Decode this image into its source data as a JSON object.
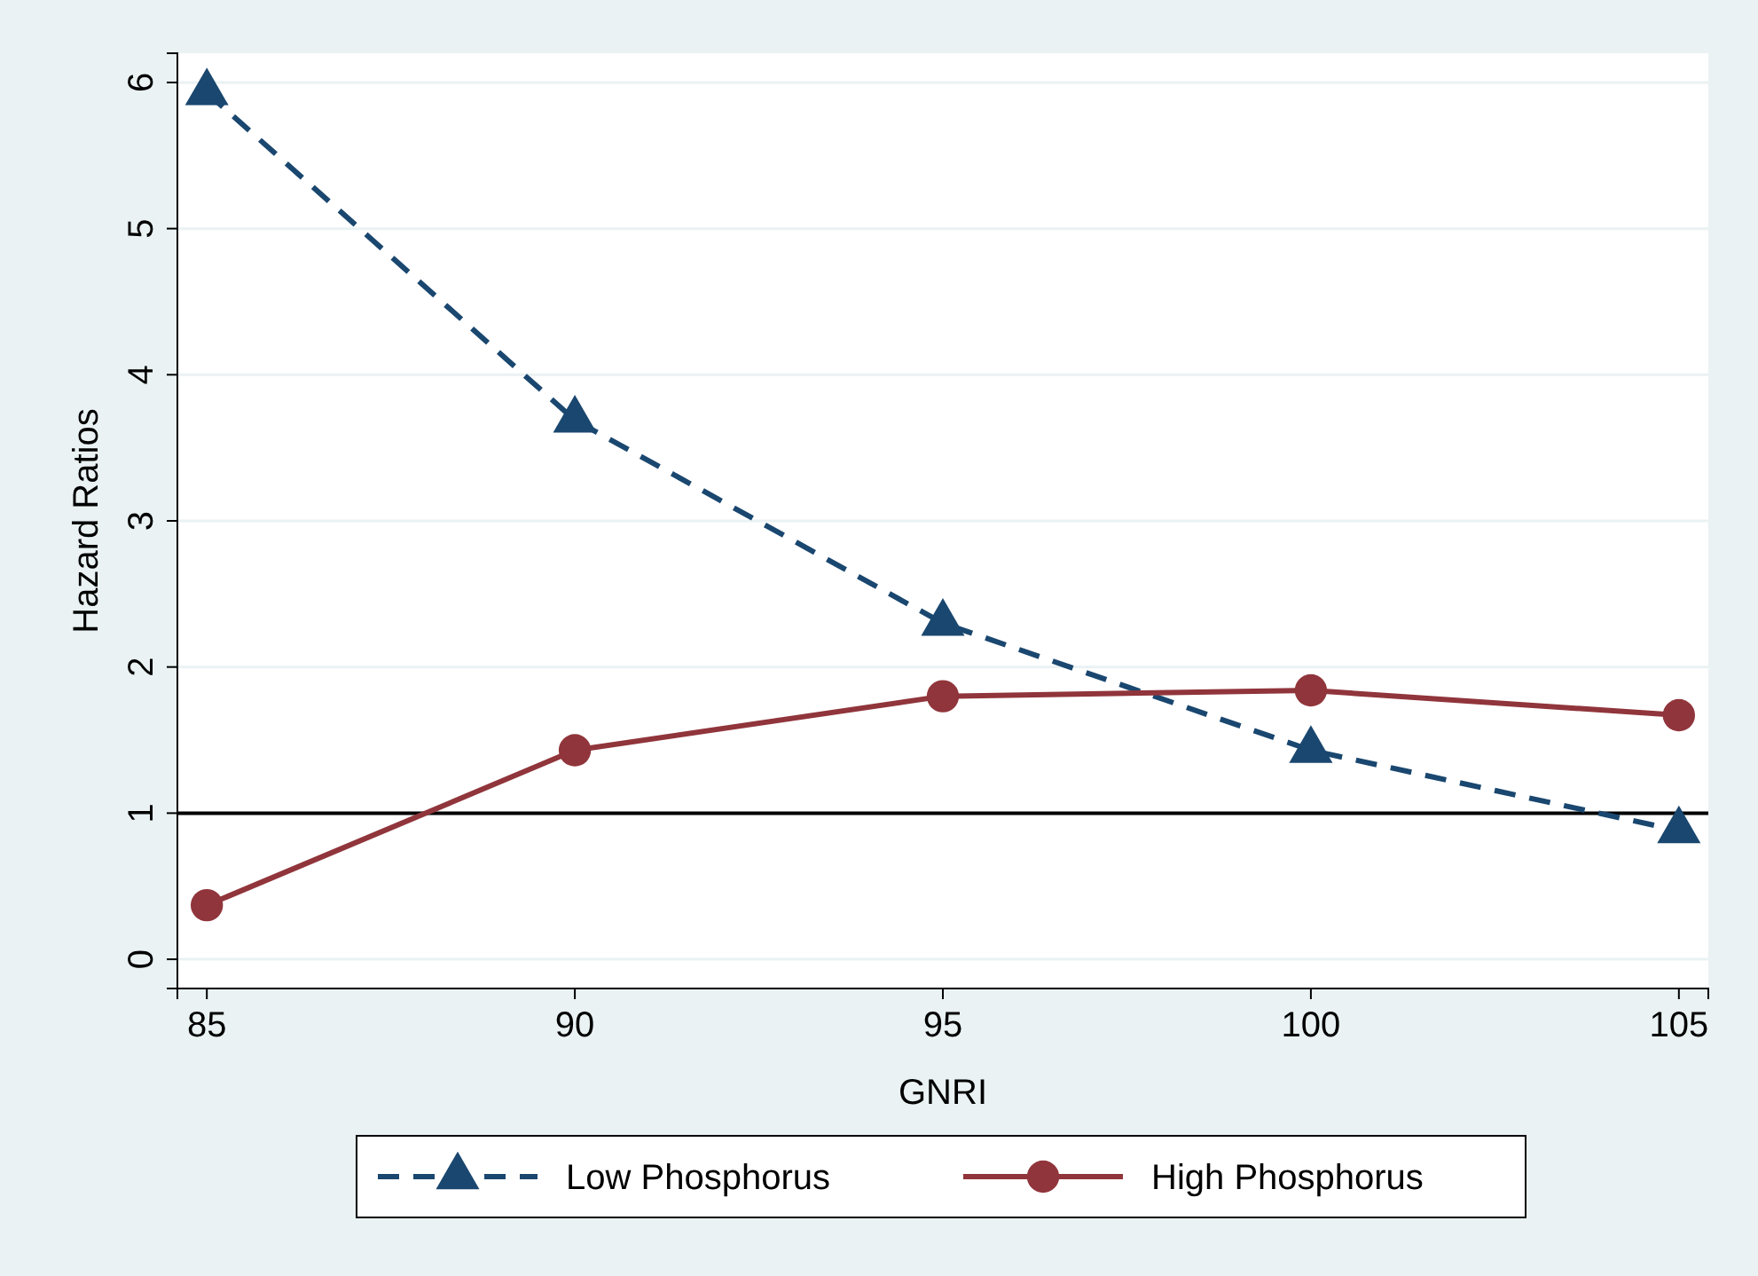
{
  "chart_data": {
    "type": "line",
    "xlabel": "GNRI",
    "ylabel": "Hazard Ratios",
    "x": [
      85,
      90,
      95,
      100,
      105
    ],
    "series": [
      {
        "name": "Low Phosphorus",
        "color": "#1a476f",
        "values": [
          5.93,
          3.69,
          2.3,
          1.43,
          0.88
        ],
        "marker": "triangle",
        "line_style": "dashed"
      },
      {
        "name": "High Phosphorus",
        "color": "#90353b",
        "values": [
          0.37,
          1.43,
          1.8,
          1.84,
          1.67
        ],
        "marker": "circle",
        "line_style": "solid"
      }
    ],
    "xlim": [
      84.6,
      105.4
    ],
    "ylim": [
      -0.2,
      6.2
    ],
    "xticks": [
      85,
      90,
      95,
      100,
      105
    ],
    "yticks": [
      0,
      1,
      2,
      3,
      4,
      5,
      6
    ],
    "ref_lines": [
      {
        "axis": "y",
        "value": 1,
        "color": "#000000"
      }
    ],
    "grid": "y",
    "legend": "bottom"
  }
}
